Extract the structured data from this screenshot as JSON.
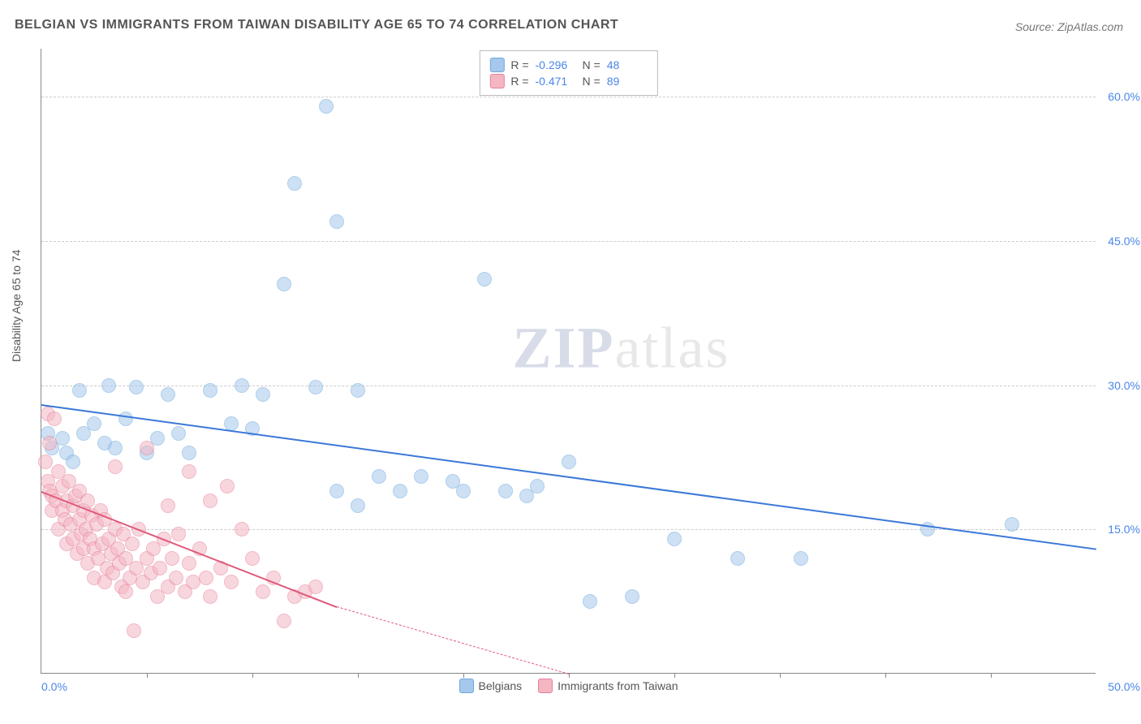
{
  "title": "BELGIAN VS IMMIGRANTS FROM TAIWAN DISABILITY AGE 65 TO 74 CORRELATION CHART",
  "source_label": "Source: ZipAtlas.com",
  "watermark": {
    "bold": "ZIP",
    "rest": "atlas"
  },
  "chart": {
    "type": "scatter",
    "ylabel": "Disability Age 65 to 74",
    "background_color": "#ffffff",
    "grid_color": "#cccccc",
    "axis_color": "#888888",
    "tick_label_color": "#4a86e8",
    "xlim": [
      0,
      50
    ],
    "ylim": [
      0,
      65
    ],
    "xtick_min_label": "0.0%",
    "xtick_max_label": "50.0%",
    "xticks_minor": [
      5,
      10,
      15,
      20,
      25,
      30,
      35,
      40,
      45
    ],
    "yticks": [
      {
        "v": 15,
        "label": "15.0%"
      },
      {
        "v": 30,
        "label": "30.0%"
      },
      {
        "v": 45,
        "label": "45.0%"
      },
      {
        "v": 60,
        "label": "60.0%"
      }
    ],
    "marker_radius": 9,
    "marker_opacity": 0.55,
    "series": [
      {
        "id": "belgians",
        "name": "Belgians",
        "fill_color": "#a6c8ec",
        "stroke_color": "#6fa8dc",
        "trend_color": "#3b78d8",
        "stats": {
          "R_label": "R =",
          "R": "-0.296",
          "N_label": "N =",
          "N": "48"
        },
        "trend": {
          "x1": 0,
          "y1": 28,
          "x2": 50,
          "y2": 13
        },
        "points": [
          [
            0.3,
            25
          ],
          [
            0.5,
            23.5
          ],
          [
            1,
            24.5
          ],
          [
            1.2,
            23
          ],
          [
            1.5,
            22
          ],
          [
            1.8,
            29.5
          ],
          [
            2,
            25
          ],
          [
            2.5,
            26
          ],
          [
            3,
            24
          ],
          [
            3.2,
            30
          ],
          [
            3.5,
            23.5
          ],
          [
            4,
            26.5
          ],
          [
            4.5,
            29.8
          ],
          [
            5,
            23
          ],
          [
            5.5,
            24.5
          ],
          [
            6,
            29
          ],
          [
            6.5,
            25
          ],
          [
            7,
            23
          ],
          [
            8,
            29.5
          ],
          [
            9,
            26
          ],
          [
            9.5,
            30
          ],
          [
            10,
            25.5
          ],
          [
            10.5,
            29
          ],
          [
            11.5,
            40.5
          ],
          [
            12,
            51
          ],
          [
            13,
            29.8
          ],
          [
            13.5,
            59
          ],
          [
            14,
            47
          ],
          [
            14,
            19
          ],
          [
            15,
            29.5
          ],
          [
            15,
            17.5
          ],
          [
            16,
            20.5
          ],
          [
            17,
            19
          ],
          [
            18,
            20.5
          ],
          [
            19.5,
            20
          ],
          [
            20,
            19
          ],
          [
            21,
            41
          ],
          [
            22,
            19
          ],
          [
            23,
            18.5
          ],
          [
            23.5,
            19.5
          ],
          [
            25,
            22
          ],
          [
            26,
            7.5
          ],
          [
            28,
            8
          ],
          [
            30,
            14
          ],
          [
            33,
            12
          ],
          [
            36,
            12
          ],
          [
            42,
            15
          ],
          [
            46,
            15.5
          ]
        ]
      },
      {
        "id": "taiwan",
        "name": "Immigrants from Taiwan",
        "fill_color": "#f4b6c2",
        "stroke_color": "#e77f9a",
        "trend_color": "#e05a7a",
        "stats": {
          "R_label": "R =",
          "R": "-0.471",
          "N_label": "N =",
          "N": "89"
        },
        "trend_solid": {
          "x1": 0,
          "y1": 19,
          "x2": 14,
          "y2": 7
        },
        "trend_dash": {
          "x1": 14,
          "y1": 7,
          "x2": 25,
          "y2": 0
        },
        "points": [
          [
            0.2,
            22
          ],
          [
            0.3,
            27
          ],
          [
            0.3,
            20
          ],
          [
            0.4,
            24
          ],
          [
            0.4,
            19
          ],
          [
            0.5,
            18.5
          ],
          [
            0.5,
            17
          ],
          [
            0.6,
            26.5
          ],
          [
            0.7,
            18
          ],
          [
            0.8,
            21
          ],
          [
            0.8,
            15
          ],
          [
            1,
            19.5
          ],
          [
            1,
            17
          ],
          [
            1.1,
            16
          ],
          [
            1.2,
            18
          ],
          [
            1.2,
            13.5
          ],
          [
            1.3,
            20
          ],
          [
            1.4,
            15.5
          ],
          [
            1.5,
            17.5
          ],
          [
            1.5,
            14
          ],
          [
            1.6,
            18.5
          ],
          [
            1.7,
            12.5
          ],
          [
            1.8,
            16
          ],
          [
            1.8,
            19
          ],
          [
            1.9,
            14.5
          ],
          [
            2,
            17
          ],
          [
            2,
            13
          ],
          [
            2.1,
            15
          ],
          [
            2.2,
            18
          ],
          [
            2.2,
            11.5
          ],
          [
            2.3,
            14
          ],
          [
            2.4,
            16.5
          ],
          [
            2.5,
            13
          ],
          [
            2.5,
            10
          ],
          [
            2.6,
            15.5
          ],
          [
            2.7,
            12
          ],
          [
            2.8,
            17
          ],
          [
            2.9,
            13.5
          ],
          [
            3,
            9.5
          ],
          [
            3,
            16
          ],
          [
            3.1,
            11
          ],
          [
            3.2,
            14
          ],
          [
            3.3,
            12.5
          ],
          [
            3.4,
            10.5
          ],
          [
            3.5,
            15
          ],
          [
            3.5,
            21.5
          ],
          [
            3.6,
            13
          ],
          [
            3.7,
            11.5
          ],
          [
            3.8,
            9
          ],
          [
            3.9,
            14.5
          ],
          [
            4,
            12
          ],
          [
            4,
            8.5
          ],
          [
            4.2,
            10
          ],
          [
            4.3,
            13.5
          ],
          [
            4.4,
            4.5
          ],
          [
            4.5,
            11
          ],
          [
            4.6,
            15
          ],
          [
            4.8,
            9.5
          ],
          [
            5,
            12
          ],
          [
            5,
            23.5
          ],
          [
            5.2,
            10.5
          ],
          [
            5.3,
            13
          ],
          [
            5.5,
            8
          ],
          [
            5.6,
            11
          ],
          [
            5.8,
            14
          ],
          [
            6,
            9
          ],
          [
            6,
            17.5
          ],
          [
            6.2,
            12
          ],
          [
            6.4,
            10
          ],
          [
            6.5,
            14.5
          ],
          [
            6.8,
            8.5
          ],
          [
            7,
            11.5
          ],
          [
            7,
            21
          ],
          [
            7.2,
            9.5
          ],
          [
            7.5,
            13
          ],
          [
            7.8,
            10
          ],
          [
            8,
            18
          ],
          [
            8,
            8
          ],
          [
            8.5,
            11
          ],
          [
            8.8,
            19.5
          ],
          [
            9,
            9.5
          ],
          [
            9.5,
            15
          ],
          [
            10,
            12
          ],
          [
            10.5,
            8.5
          ],
          [
            11,
            10
          ],
          [
            11.5,
            5.5
          ],
          [
            12,
            8
          ],
          [
            12.5,
            8.5
          ],
          [
            13,
            9
          ]
        ]
      }
    ],
    "legend_bottom": [
      {
        "swatch_fill": "#a6c8ec",
        "swatch_stroke": "#6fa8dc",
        "label": "Belgians"
      },
      {
        "swatch_fill": "#f4b6c2",
        "swatch_stroke": "#e77f9a",
        "label": "Immigrants from Taiwan"
      }
    ]
  }
}
